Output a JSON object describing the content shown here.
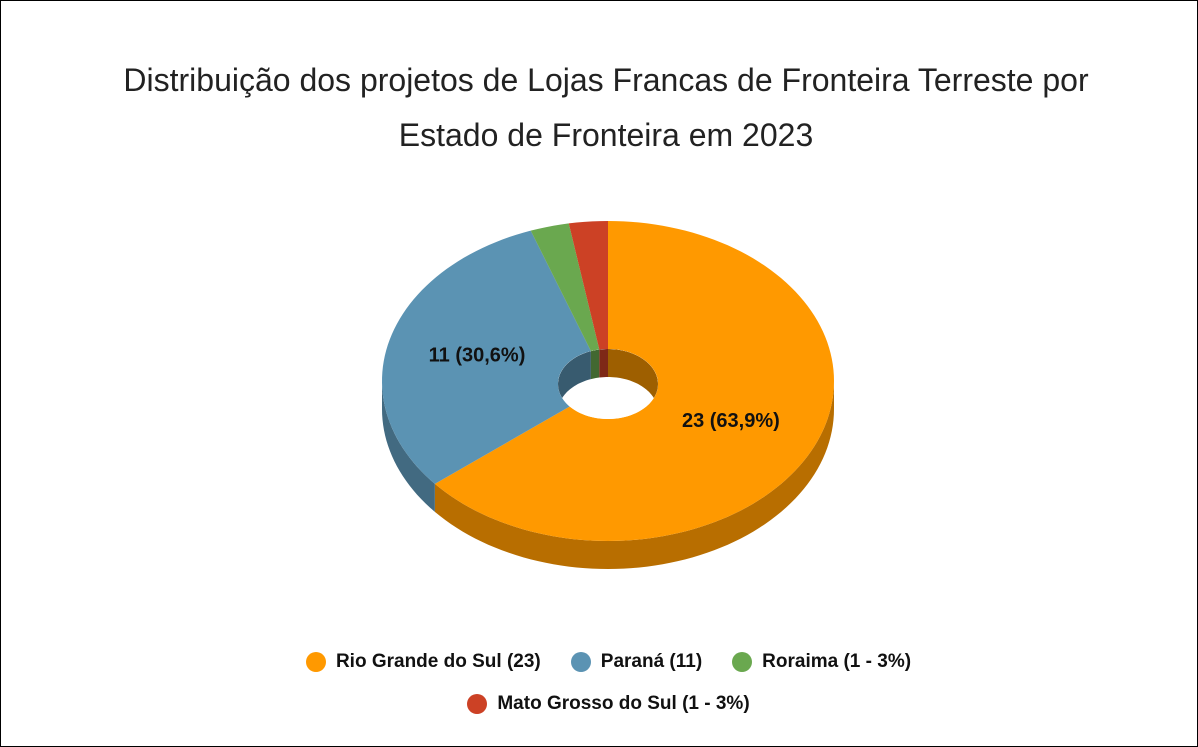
{
  "chart_data": {
    "type": "pie3d",
    "title": "Distribuição dos projetos de Lojas Francas de Fronteira Terreste por Estado de Fronteira em 2023",
    "categories": [
      "Rio Grande do Sul (23)",
      "Paraná (11)",
      "Roraima (1 - 3%)",
      "Mato Grosso do Sul (1 - 3%)"
    ],
    "values": [
      23,
      11,
      1,
      1
    ],
    "value_labels": [
      "23 (63,9%)",
      "11 (30,6%)",
      null,
      null
    ],
    "colors": [
      "#ff9900",
      "#5b93b3",
      "#6aa84f",
      "#cc4125"
    ],
    "donut": true
  }
}
